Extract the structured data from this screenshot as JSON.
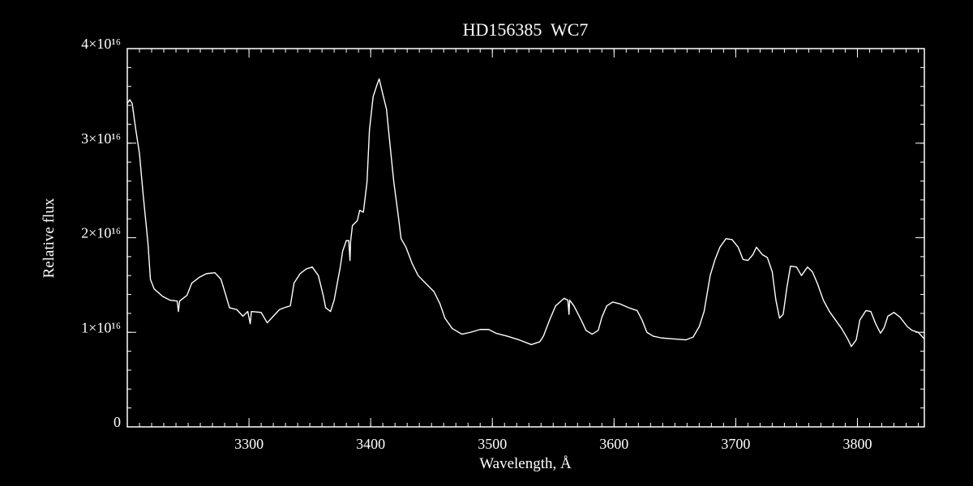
{
  "chart_data": {
    "type": "line",
    "title": "HD156385  WC7",
    "x_label": "Wavelength, Å",
    "y_label": "Relative flux",
    "color": "#ffffff",
    "background": "#000000",
    "xlim": [
      3200,
      3855
    ],
    "xticks": [
      3300,
      3400,
      3500,
      3600,
      3700,
      3800
    ],
    "ylim": [
      0,
      4e+16
    ],
    "yticks": [
      0,
      {
        "value": 1e+16,
        "label": "1×10¹⁶"
      },
      {
        "value": 2e+16,
        "label": "2×10¹⁶"
      },
      {
        "value": 3e+16,
        "label": "3×10¹⁶"
      },
      {
        "value": 4e+16,
        "label": "4×10¹⁶"
      }
    ],
    "x": [
      3200,
      3202,
      3204,
      3207,
      3210,
      3213,
      3217,
      3219,
      3222,
      3229,
      3235,
      3241,
      3242,
      3243,
      3249,
      3253,
      3259,
      3265,
      3272,
      3277,
      3281,
      3284,
      3290,
      3295,
      3299,
      3301,
      3302,
      3310,
      3315,
      3320,
      3325,
      3329,
      3334,
      3337,
      3342,
      3347,
      3352,
      3357,
      3361,
      3363,
      3367,
      3370,
      3375,
      3377,
      3380,
      3382,
      3383,
      3383.5,
      3385,
      3389,
      3391,
      3394,
      3397,
      3399,
      3402,
      3405,
      3407,
      3409,
      3413,
      3416,
      3419,
      3423,
      3425,
      3429,
      3434,
      3439,
      3445,
      3452,
      3457,
      3461,
      3467,
      3475,
      3482,
      3490,
      3497,
      3503,
      3512,
      3522,
      3532,
      3539,
      3542,
      3547,
      3552,
      3559,
      3562,
      3563,
      3563.5,
      3567,
      3573,
      3577,
      3582,
      3587,
      3590,
      3594,
      3599,
      3605,
      3612,
      3619,
      3623,
      3627,
      3632,
      3639,
      3649,
      3659,
      3665,
      3670,
      3674,
      3679,
      3683,
      3687,
      3692,
      3697,
      3702,
      3706,
      3710,
      3714,
      3717,
      3722,
      3726,
      3730,
      3733,
      3736,
      3739,
      3742,
      3745,
      3750,
      3754,
      3759,
      3763,
      3767,
      3772,
      3777,
      3782,
      3787,
      3792,
      3795,
      3799,
      3802,
      3807,
      3811,
      3815,
      3819,
      3822,
      3825,
      3830,
      3835,
      3841,
      3845,
      3850,
      3855
    ],
    "values": [
      3.42e+16,
      3.46e+16,
      3.42e+16,
      3.14e+16,
      2.89e+16,
      2.46e+16,
      1.94e+16,
      1.56e+16,
      1.46e+16,
      1.38e+16,
      1.34e+16,
      1.33e+16,
      1.22e+16,
      1.33e+16,
      1.39e+16,
      1.52e+16,
      1.58e+16,
      1.62e+16,
      1.63e+16,
      1.56e+16,
      1.39e+16,
      1.26e+16,
      1.24e+16,
      1.17e+16,
      1.22e+16,
      1.09e+16,
      1.22e+16,
      1.21e+16,
      1.1e+16,
      1.17e+16,
      1.24e+16,
      1.26e+16,
      1.28e+16,
      1.52e+16,
      1.62e+16,
      1.67e+16,
      1.69e+16,
      1.6e+16,
      1.39e+16,
      1.26e+16,
      1.22e+16,
      1.34e+16,
      1.69e+16,
      1.86e+16,
      1.97e+16,
      1.97e+16,
      1.76e+16,
      1.96e+16,
      2.13e+16,
      2.18e+16,
      2.29e+16,
      2.27e+16,
      2.59e+16,
      3.14e+16,
      3.49e+16,
      3.61e+16,
      3.68e+16,
      3.57e+16,
      3.36e+16,
      2.97e+16,
      2.59e+16,
      2.2e+16,
      1.99e+16,
      1.9e+16,
      1.73e+16,
      1.6e+16,
      1.52e+16,
      1.43e+16,
      1.3e+16,
      1.15e+16,
      1.04e+16,
      9800000000000000.0,
      1e+16,
      1.03e+16,
      1.03e+16,
      9900000000000000.0,
      9600000000000000.0,
      9200000000000000.0,
      8700000000000000.0,
      9000000000000000.0,
      9600000000000000.0,
      1.13e+16,
      1.28e+16,
      1.36e+16,
      1.34e+16,
      1.19e+16,
      1.34e+16,
      1.28e+16,
      1.13e+16,
      1.02e+16,
      9800000000000000.0,
      1.02e+16,
      1.16e+16,
      1.28e+16,
      1.32e+16,
      1.3e+16,
      1.26e+16,
      1.23e+16,
      1.13e+16,
      1e+16,
      9600000000000000.0,
      9400000000000000.0,
      9300000000000000.0,
      9200000000000000.0,
      9500000000000000.0,
      1.06e+16,
      1.22e+16,
      1.6e+16,
      1.77e+16,
      1.9e+16,
      1.99e+16,
      1.98e+16,
      1.9e+16,
      1.77e+16,
      1.76e+16,
      1.82e+16,
      1.9e+16,
      1.82e+16,
      1.79e+16,
      1.64e+16,
      1.34e+16,
      1.15e+16,
      1.19e+16,
      1.47e+16,
      1.7e+16,
      1.69e+16,
      1.6e+16,
      1.69e+16,
      1.64e+16,
      1.52e+16,
      1.34e+16,
      1.22e+16,
      1.13e+16,
      1.04e+16,
      9300000000000000.0,
      8500000000000000.0,
      9200000000000000.0,
      1.13e+16,
      1.23e+16,
      1.22e+16,
      1.09e+16,
      9900000000000000.0,
      1.05e+16,
      1.17e+16,
      1.21e+16,
      1.16e+16,
      1.06e+16,
      1.02e+16,
      1e+16,
      9300000000000000.0
    ]
  }
}
